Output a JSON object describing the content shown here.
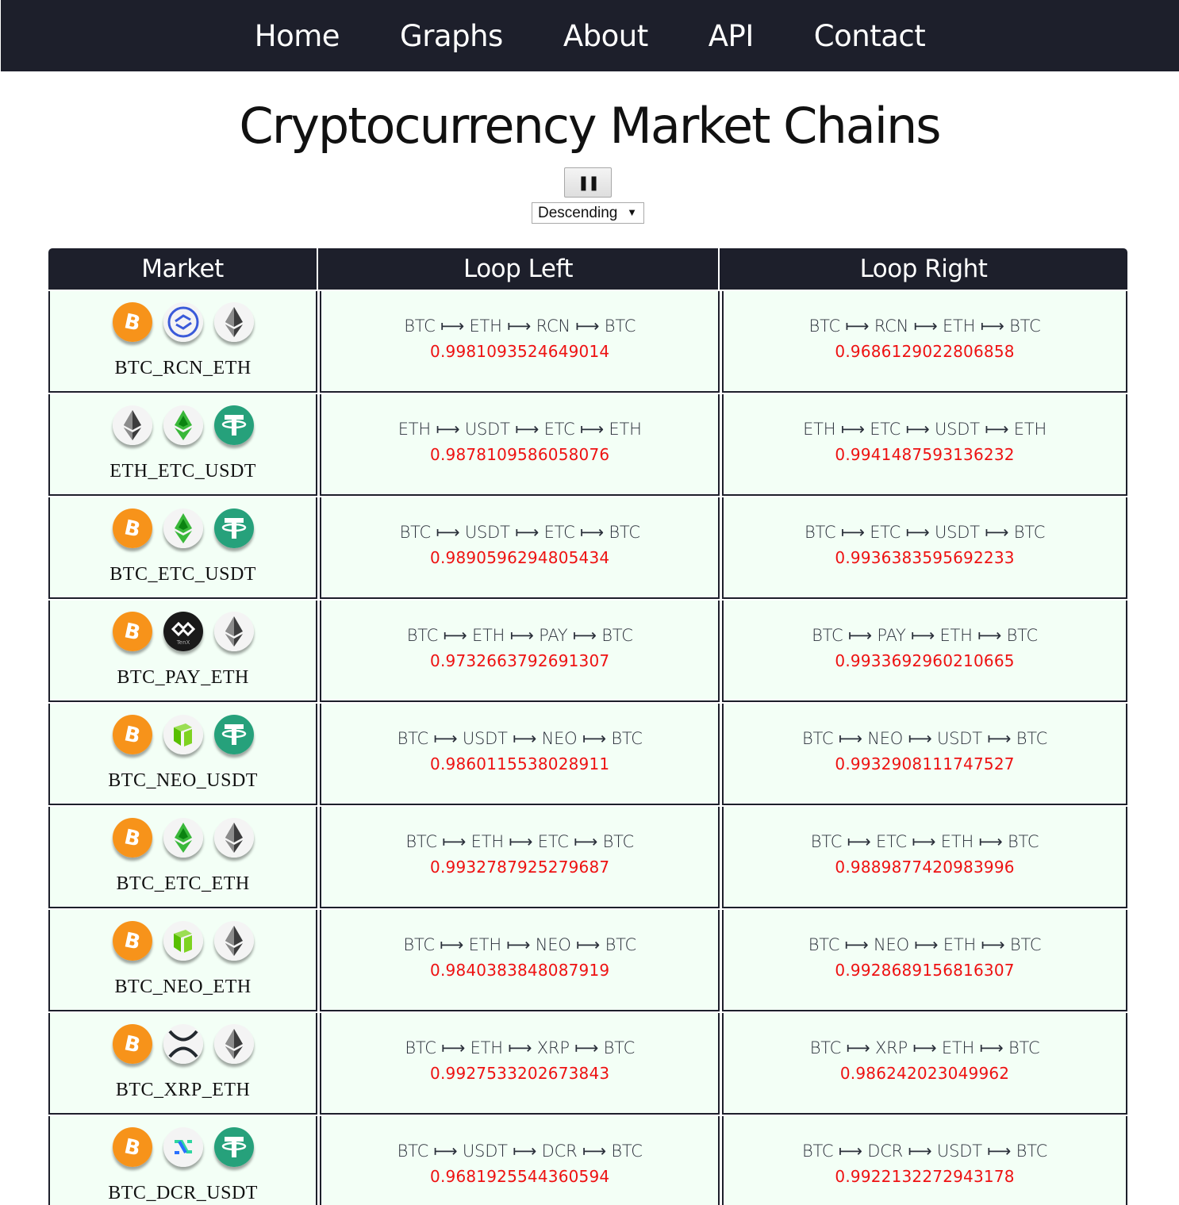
{
  "nav": {
    "items": [
      "Home",
      "Graphs",
      "About",
      "API",
      "Contact"
    ]
  },
  "page": {
    "title": "Cryptocurrency Market Chains"
  },
  "controls": {
    "pause_icon": "pause-icon",
    "pause_glyph": "❚❚",
    "sort_value": "Descending",
    "sort_caret": "▼"
  },
  "table": {
    "headers": [
      "Market",
      "Loop Left",
      "Loop Right"
    ],
    "rows": [
      {
        "market": "BTC_RCN_ETH",
        "coins": [
          "btc",
          "rcn",
          "eth"
        ],
        "left_chain": "BTC ⟼ ETH ⟼ RCN ⟼ BTC",
        "left_value": "0.9981093524649014",
        "right_chain": "BTC ⟼ RCN ⟼ ETH ⟼ BTC",
        "right_value": "0.9686129022806858"
      },
      {
        "market": "ETH_ETC_USDT",
        "coins": [
          "eth",
          "etc",
          "usdt"
        ],
        "left_chain": "ETH ⟼ USDT ⟼ ETC ⟼ ETH",
        "left_value": "0.9878109586058076",
        "right_chain": "ETH ⟼ ETC ⟼ USDT ⟼ ETH",
        "right_value": "0.9941487593136232"
      },
      {
        "market": "BTC_ETC_USDT",
        "coins": [
          "btc",
          "etc",
          "usdt"
        ],
        "left_chain": "BTC ⟼ USDT ⟼ ETC ⟼ BTC",
        "left_value": "0.9890596294805434",
        "right_chain": "BTC ⟼ ETC ⟼ USDT ⟼ BTC",
        "right_value": "0.9936383595692233"
      },
      {
        "market": "BTC_PAY_ETH",
        "coins": [
          "btc",
          "pay",
          "eth"
        ],
        "left_chain": "BTC ⟼ ETH ⟼ PAY ⟼ BTC",
        "left_value": "0.9732663792691307",
        "right_chain": "BTC ⟼ PAY ⟼ ETH ⟼ BTC",
        "right_value": "0.9933692960210665"
      },
      {
        "market": "BTC_NEO_USDT",
        "coins": [
          "btc",
          "neo",
          "usdt"
        ],
        "left_chain": "BTC ⟼ USDT ⟼ NEO ⟼ BTC",
        "left_value": "0.9860115538028911",
        "right_chain": "BTC ⟼ NEO ⟼ USDT ⟼ BTC",
        "right_value": "0.9932908111747527"
      },
      {
        "market": "BTC_ETC_ETH",
        "coins": [
          "btc",
          "etc",
          "eth"
        ],
        "left_chain": "BTC ⟼ ETH ⟼ ETC ⟼ BTC",
        "left_value": "0.9932787925279687",
        "right_chain": "BTC ⟼ ETC ⟼ ETH ⟼ BTC",
        "right_value": "0.9889877420983996"
      },
      {
        "market": "BTC_NEO_ETH",
        "coins": [
          "btc",
          "neo",
          "eth"
        ],
        "left_chain": "BTC ⟼ ETH ⟼ NEO ⟼ BTC",
        "left_value": "0.9840383848087919",
        "right_chain": "BTC ⟼ NEO ⟼ ETH ⟼ BTC",
        "right_value": "0.9928689156816307"
      },
      {
        "market": "BTC_XRP_ETH",
        "coins": [
          "btc",
          "xrp",
          "eth"
        ],
        "left_chain": "BTC ⟼ ETH ⟼ XRP ⟼ BTC",
        "left_value": "0.9927533202673843",
        "right_chain": "BTC ⟼ XRP ⟼ ETH ⟼ BTC",
        "right_value": "0.986242023049962"
      },
      {
        "market": "BTC_DCR_USDT",
        "coins": [
          "btc",
          "dcr",
          "usdt"
        ],
        "left_chain": "BTC ⟼ USDT ⟼ DCR ⟼ BTC",
        "left_value": "0.9681925544360594",
        "right_chain": "BTC ⟼ DCR ⟼ USDT ⟼ BTC",
        "right_value": "0.9922132272943178"
      }
    ]
  },
  "colors": {
    "nav_bg": "#1d1f2b",
    "row_bg": "#f3fff6",
    "value_red": "#ee1111",
    "btc": "#f7931a",
    "usdt": "#26a17b",
    "etc": "#3ab83a",
    "neo": "#58bf00"
  }
}
